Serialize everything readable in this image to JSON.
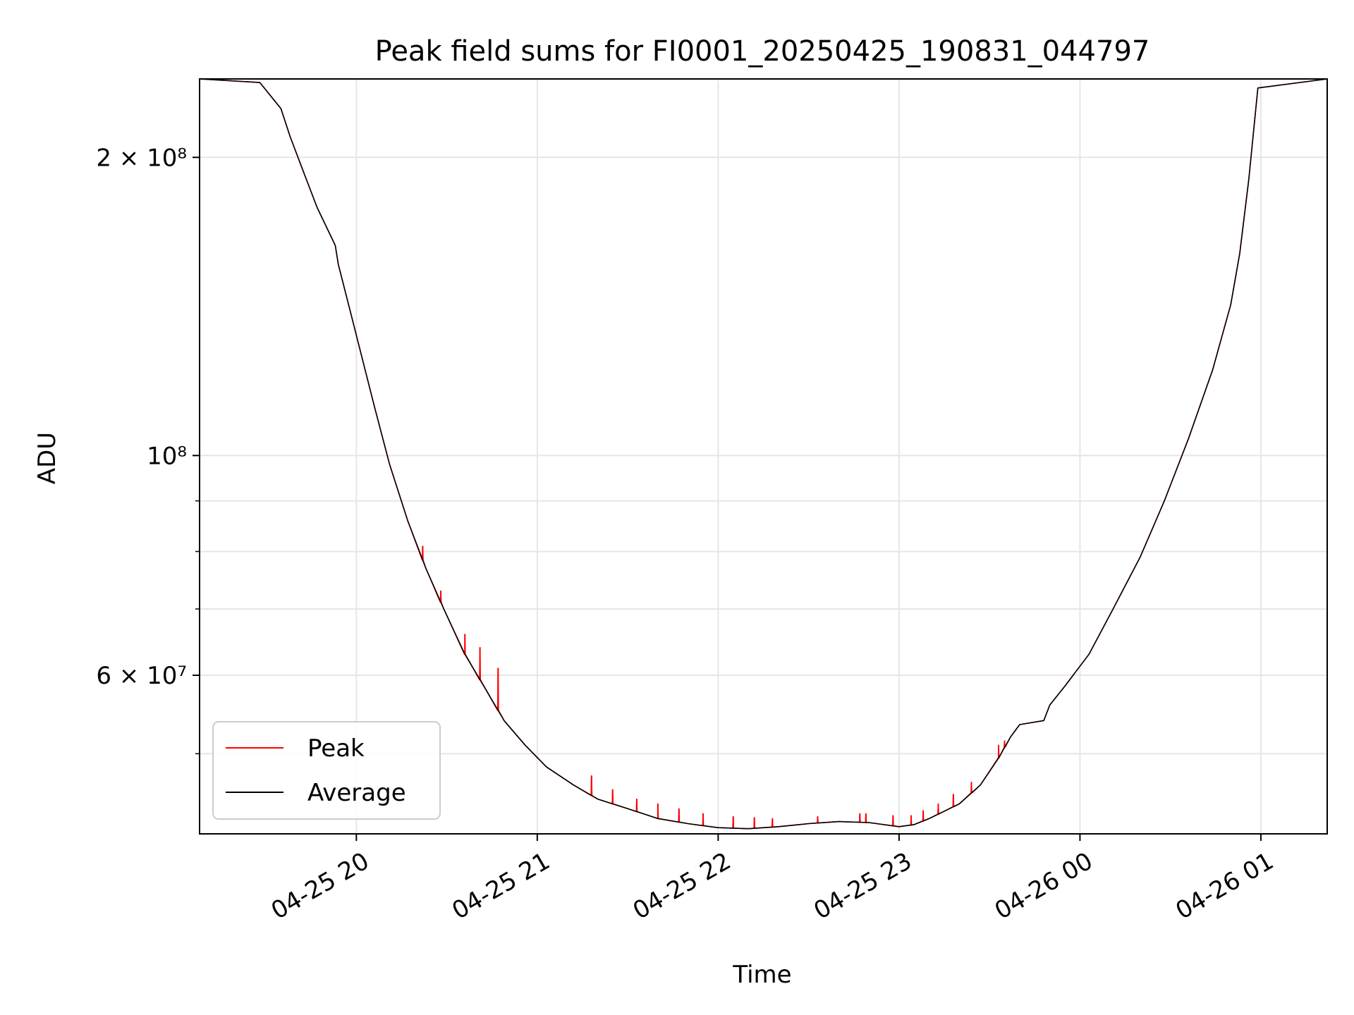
{
  "chart_data": {
    "type": "line",
    "title": "Peak field sums for FI0001_20250425_190831_044797",
    "xlabel": "Time",
    "ylabel": "ADU",
    "yscale": "log",
    "grid": true,
    "legend_placement": "lower-left",
    "colors": {
      "Peak": "#ff0000",
      "Average": "#000000"
    },
    "xlim": [
      "2025-04-25 19:08",
      "2025-04-26 01:22"
    ],
    "ylim": [
      41500000,
      240000000
    ],
    "x_ticks": [
      {
        "t": "2025-04-25 20:00",
        "label": "04-25 20"
      },
      {
        "t": "2025-04-25 21:00",
        "label": "04-25 21"
      },
      {
        "t": "2025-04-25 22:00",
        "label": "04-25 22"
      },
      {
        "t": "2025-04-25 23:00",
        "label": "04-25 23"
      },
      {
        "t": "2025-04-26 00:00",
        "label": "04-26 00"
      },
      {
        "t": "2025-04-26 01:00",
        "label": "04-26 01"
      }
    ],
    "y_major_ticks": [
      {
        "v": 200000000,
        "label": "2 × 10⁸"
      },
      {
        "v": 100000000,
        "label": "10⁸"
      },
      {
        "v": 60000000,
        "label": "6 × 10⁷"
      }
    ],
    "y_minor_ticks": [
      50000000,
      70000000,
      80000000,
      90000000
    ],
    "series": [
      {
        "name": "Average",
        "x": [
          "2025-04-25 19:08",
          "2025-04-25 19:28",
          "2025-04-25 19:35",
          "2025-04-25 19:38",
          "2025-04-25 19:42",
          "2025-04-25 19:47",
          "2025-04-25 19:53",
          "2025-04-25 19:54",
          "2025-04-25 19:59",
          "2025-04-25 20:06",
          "2025-04-25 20:11",
          "2025-04-25 20:17",
          "2025-04-25 20:23",
          "2025-04-25 20:29",
          "2025-04-25 20:36",
          "2025-04-25 20:43",
          "2025-04-25 20:49",
          "2025-04-25 20:56",
          "2025-04-25 21:03",
          "2025-04-25 21:12",
          "2025-04-25 21:20",
          "2025-04-25 21:30",
          "2025-04-25 21:40",
          "2025-04-25 21:50",
          "2025-04-25 22:00",
          "2025-04-25 22:10",
          "2025-04-25 22:20",
          "2025-04-25 22:30",
          "2025-04-25 22:40",
          "2025-04-25 22:50",
          "2025-04-25 23:00",
          "2025-04-25 23:05",
          "2025-04-25 23:10",
          "2025-04-25 23:20",
          "2025-04-25 23:27",
          "2025-04-25 23:33",
          "2025-04-25 23:37",
          "2025-04-25 23:40",
          "2025-04-25 23:48",
          "2025-04-25 23:50",
          "2025-04-25 23:55",
          "2025-04-26 00:03",
          "2025-04-26 00:11",
          "2025-04-26 00:20",
          "2025-04-26 00:28",
          "2025-04-26 00:36",
          "2025-04-26 00:44",
          "2025-04-26 00:50",
          "2025-04-26 00:53",
          "2025-04-26 00:56",
          "2025-04-26 00:59",
          "2025-04-26 01:22"
        ],
        "values": [
          240000000,
          238000000,
          224000000,
          210000000,
          195000000,
          178000000,
          163000000,
          156000000,
          136000000,
          112000000,
          98000000,
          86000000,
          77000000,
          70000000,
          63000000,
          58000000,
          54000000,
          51000000,
          48500000,
          46500000,
          45000000,
          44000000,
          43000000,
          42500000,
          42100000,
          42000000,
          42200000,
          42500000,
          42700000,
          42600000,
          42200000,
          42400000,
          43000000,
          44500000,
          46500000,
          49500000,
          52000000,
          53500000,
          54000000,
          56000000,
          58500000,
          63000000,
          70000000,
          79000000,
          90000000,
          104000000,
          122000000,
          142000000,
          160000000,
          190000000,
          235000000,
          240000000
        ]
      },
      {
        "name": "Peak",
        "x": [
          "2025-04-25 19:08",
          "2025-04-25 19:28",
          "2025-04-25 19:35",
          "2025-04-25 19:38",
          "2025-04-25 19:42",
          "2025-04-25 19:47",
          "2025-04-25 19:53",
          "2025-04-25 19:54",
          "2025-04-25 19:59",
          "2025-04-25 20:06",
          "2025-04-25 20:11",
          "2025-04-25 20:17",
          "2025-04-25 20:23",
          "2025-04-25 20:29",
          "2025-04-25 20:36",
          "2025-04-25 20:43",
          "2025-04-25 20:49",
          "2025-04-25 20:56",
          "2025-04-25 21:03",
          "2025-04-25 21:12",
          "2025-04-25 21:20",
          "2025-04-25 21:30",
          "2025-04-25 21:40",
          "2025-04-25 21:50",
          "2025-04-25 22:00",
          "2025-04-25 22:10",
          "2025-04-25 22:20",
          "2025-04-25 22:30",
          "2025-04-25 22:40",
          "2025-04-25 22:50",
          "2025-04-25 23:00",
          "2025-04-25 23:05",
          "2025-04-25 23:10",
          "2025-04-25 23:20",
          "2025-04-25 23:27",
          "2025-04-25 23:33",
          "2025-04-25 23:37",
          "2025-04-25 23:40",
          "2025-04-25 23:48",
          "2025-04-25 23:50",
          "2025-04-25 23:55",
          "2025-04-26 00:03",
          "2025-04-26 00:11",
          "2025-04-26 00:20",
          "2025-04-26 00:28",
          "2025-04-26 00:36",
          "2025-04-26 00:44",
          "2025-04-26 00:50",
          "2025-04-26 00:53",
          "2025-04-26 00:56",
          "2025-04-26 00:59",
          "2025-04-26 01:22"
        ],
        "values": [
          240000000,
          238000000,
          224000000,
          210000000,
          195000000,
          178000000,
          163000000,
          156000000,
          136000000,
          112000000,
          98000000,
          86000000,
          77000000,
          70000000,
          63000000,
          58000000,
          54000000,
          51000000,
          48500000,
          46500000,
          45000000,
          44000000,
          43000000,
          42500000,
          42100000,
          42000000,
          42200000,
          42500000,
          42700000,
          42600000,
          42200000,
          42400000,
          43000000,
          44500000,
          46500000,
          49500000,
          52000000,
          53500000,
          54000000,
          56000000,
          58500000,
          63000000,
          70000000,
          79000000,
          90000000,
          104000000,
          122000000,
          142000000,
          160000000,
          190000000,
          235000000,
          240000000
        ],
        "spikes": [
          {
            "t": "2025-04-25 20:22",
            "v": 81000000
          },
          {
            "t": "2025-04-25 20:28",
            "v": 73000000
          },
          {
            "t": "2025-04-25 20:36",
            "v": 66000000
          },
          {
            "t": "2025-04-25 20:41",
            "v": 64000000
          },
          {
            "t": "2025-04-25 20:47",
            "v": 61000000
          },
          {
            "t": "2025-04-25 21:18",
            "v": 47500000
          },
          {
            "t": "2025-04-25 21:25",
            "v": 46000000
          },
          {
            "t": "2025-04-25 21:33",
            "v": 45000000
          },
          {
            "t": "2025-04-25 21:40",
            "v": 44500000
          },
          {
            "t": "2025-04-25 21:47",
            "v": 44000000
          },
          {
            "t": "2025-04-25 21:55",
            "v": 43500000
          },
          {
            "t": "2025-04-25 22:05",
            "v": 43200000
          },
          {
            "t": "2025-04-25 22:12",
            "v": 43100000
          },
          {
            "t": "2025-04-25 22:18",
            "v": 43000000
          },
          {
            "t": "2025-04-25 22:33",
            "v": 43200000
          },
          {
            "t": "2025-04-25 22:47",
            "v": 43500000
          },
          {
            "t": "2025-04-25 22:49",
            "v": 43500000
          },
          {
            "t": "2025-04-25 22:58",
            "v": 43300000
          },
          {
            "t": "2025-04-25 23:04",
            "v": 43300000
          },
          {
            "t": "2025-04-25 23:08",
            "v": 43800000
          },
          {
            "t": "2025-04-25 23:13",
            "v": 44500000
          },
          {
            "t": "2025-04-25 23:18",
            "v": 45500000
          },
          {
            "t": "2025-04-25 23:24",
            "v": 46800000
          },
          {
            "t": "2025-04-25 23:33",
            "v": 51000000
          },
          {
            "t": "2025-04-25 23:35",
            "v": 51500000
          }
        ]
      }
    ]
  }
}
